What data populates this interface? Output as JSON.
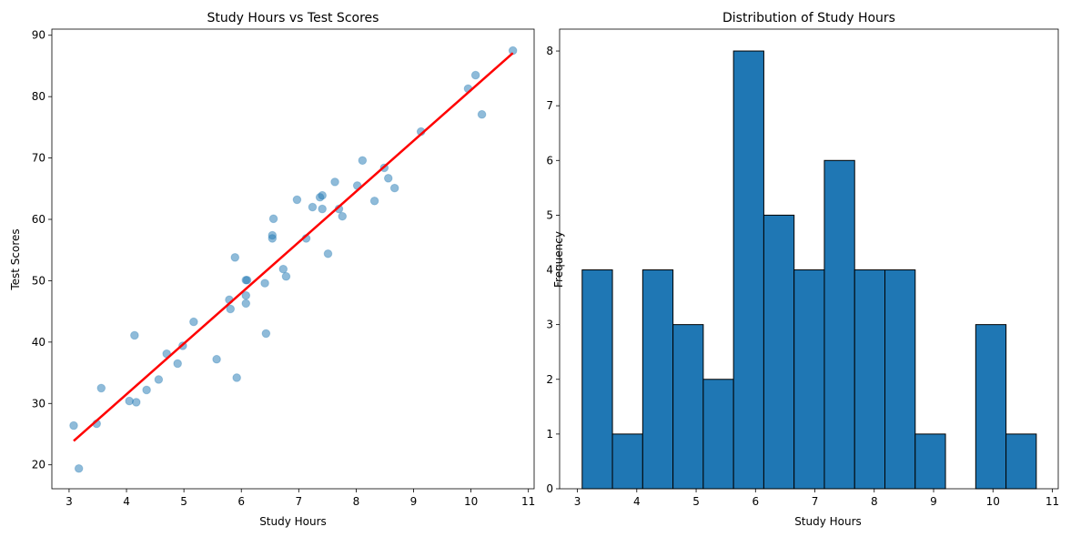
{
  "chart_data": [
    {
      "type": "scatter",
      "title": "Study Hours vs Test Scores",
      "xlabel": "Study Hours",
      "ylabel": "Test Scores",
      "xlim": [
        2.7,
        11.1
      ],
      "ylim": [
        16.1,
        91
      ],
      "xticks": [
        3,
        4,
        5,
        6,
        7,
        8,
        9,
        10,
        11
      ],
      "yticks": [
        20,
        30,
        40,
        50,
        60,
        70,
        80,
        90
      ],
      "point_color": "#1f77b4",
      "point_alpha": 0.5,
      "points": [
        [
          3.08,
          26.4
        ],
        [
          3.17,
          19.4
        ],
        [
          3.48,
          26.7
        ],
        [
          3.56,
          32.5
        ],
        [
          4.05,
          30.4
        ],
        [
          4.14,
          41.1
        ],
        [
          4.17,
          30.2
        ],
        [
          4.35,
          32.2
        ],
        [
          4.56,
          33.9
        ],
        [
          4.7,
          38.1
        ],
        [
          4.89,
          36.5
        ],
        [
          4.98,
          39.4
        ],
        [
          5.17,
          43.3
        ],
        [
          5.57,
          37.2
        ],
        [
          5.79,
          46.9
        ],
        [
          5.81,
          45.4
        ],
        [
          5.89,
          53.8
        ],
        [
          5.92,
          34.2
        ],
        [
          6.08,
          50.1
        ],
        [
          6.1,
          50.1
        ],
        [
          6.08,
          47.6
        ],
        [
          6.08,
          46.3
        ],
        [
          6.41,
          49.6
        ],
        [
          6.43,
          41.4
        ],
        [
          6.54,
          57.4
        ],
        [
          6.54,
          56.9
        ],
        [
          6.56,
          60.1
        ],
        [
          6.73,
          51.9
        ],
        [
          6.78,
          50.7
        ],
        [
          6.97,
          63.2
        ],
        [
          7.13,
          56.9
        ],
        [
          7.24,
          62.0
        ],
        [
          7.37,
          63.6
        ],
        [
          7.41,
          63.9
        ],
        [
          7.41,
          61.7
        ],
        [
          7.51,
          54.4
        ],
        [
          7.63,
          66.1
        ],
        [
          7.7,
          61.7
        ],
        [
          7.76,
          60.5
        ],
        [
          8.02,
          65.5
        ],
        [
          8.11,
          69.6
        ],
        [
          8.32,
          63.0
        ],
        [
          8.49,
          68.4
        ],
        [
          8.56,
          66.7
        ],
        [
          8.67,
          65.1
        ],
        [
          9.13,
          74.3
        ],
        [
          9.95,
          81.3
        ],
        [
          10.08,
          83.5
        ],
        [
          10.19,
          77.1
        ],
        [
          10.73,
          87.5
        ]
      ],
      "regression_line": {
        "color": "#ff0000",
        "x": [
          3.08,
          10.73
        ],
        "y": [
          23.9,
          87.1
        ]
      }
    },
    {
      "type": "bar",
      "subtype": "histogram",
      "title": "Distribution of Study Hours",
      "xlabel": "Study Hours",
      "ylabel": "Frequency",
      "xlim": [
        2.7,
        11.1
      ],
      "ylim": [
        0,
        8.4
      ],
      "xticks": [
        3,
        4,
        5,
        6,
        7,
        8,
        9,
        10,
        11
      ],
      "yticks": [
        0,
        1,
        2,
        3,
        4,
        5,
        6,
        7,
        8
      ],
      "bar_color": "#1f77b4",
      "edge_color": "#000000",
      "bin_start": 3.08,
      "bin_width": 0.51,
      "counts": [
        4,
        1,
        4,
        3,
        2,
        8,
        5,
        4,
        6,
        4,
        4,
        1,
        0,
        3,
        1
      ]
    }
  ]
}
